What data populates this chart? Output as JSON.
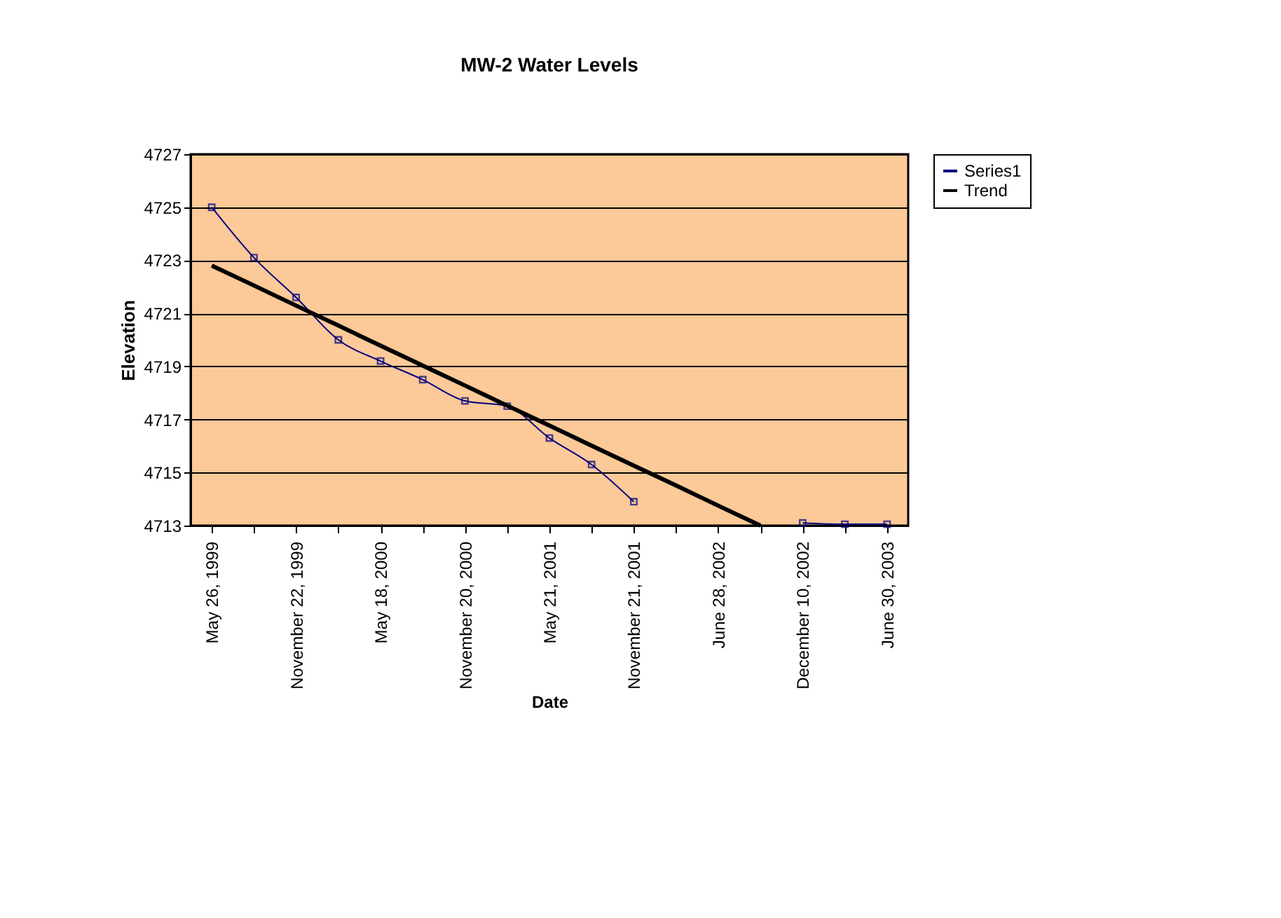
{
  "chart_data": {
    "type": "line",
    "title": "MW-2 Water Levels",
    "xlabel": "Date",
    "ylabel": "Elevation",
    "categories": [
      "May 26, 1999",
      null,
      "November 22, 1999",
      null,
      "May 18, 2000",
      null,
      "November 20, 2000",
      null,
      "May 21, 2001",
      null,
      "November 21, 2001",
      null,
      "June 28, 2002",
      null,
      "December 10, 2002",
      null,
      "June 30, 2003"
    ],
    "series": [
      {
        "name": "Series1",
        "color": "#000080",
        "marker": "square",
        "values": [
          4725.0,
          4723.1,
          4721.6,
          4720.0,
          4719.2,
          4718.5,
          4717.7,
          4717.5,
          4716.3,
          4715.3,
          4713.9,
          null,
          null,
          null,
          4713.1,
          4713.05,
          4713.05
        ]
      },
      {
        "name": "Trend",
        "type": "line",
        "color": "#000000",
        "marker": "none",
        "values": [
          4722.8,
          4722.05,
          4721.29,
          4720.54,
          4719.78,
          4719.03,
          4718.28,
          4717.52,
          4716.77,
          4716.01,
          4715.26,
          4714.51,
          4713.75,
          4713.0,
          null,
          null,
          null
        ]
      }
    ],
    "ylim": [
      4713,
      4727
    ],
    "yticks": [
      4713,
      4715,
      4717,
      4719,
      4721,
      4723,
      4725,
      4727
    ],
    "grid": "y",
    "legend": "right"
  }
}
